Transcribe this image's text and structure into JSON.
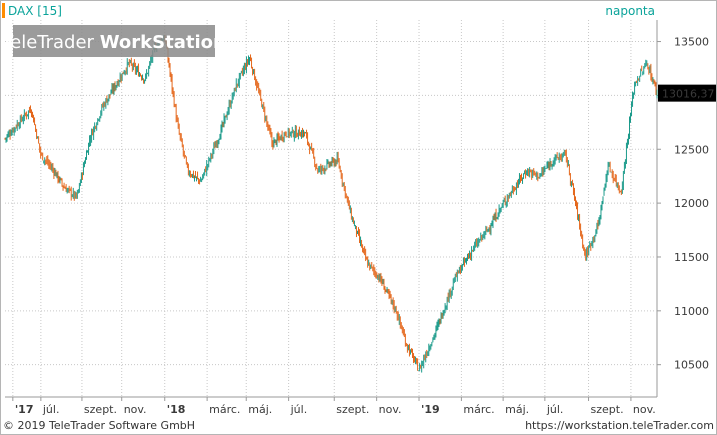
{
  "header": {
    "symbol_label": "DAX [15]",
    "period_label": "naponta"
  },
  "watermark": {
    "brand": "TeleTrader",
    "product": "WorkStation"
  },
  "last_price_label": "13016,37",
  "footer": {
    "copyright": "© 2019 TeleTrader Software GmbH",
    "url": "https://workstation.teleTrader.com"
  },
  "colors": {
    "up": "#1a9a8a",
    "down": "#e4661a",
    "accent": "#ff8c00",
    "title": "#0aa39a",
    "grid": "#c8c8c8",
    "price_box": "#000000",
    "watermark_bg": "#8a8a8a"
  },
  "chart_data": {
    "type": "line",
    "candle_style": "ohlc-bars",
    "series_name": "DAX",
    "ylim": [
      10200,
      13700
    ],
    "y_ticks": [
      10500,
      11000,
      11500,
      12000,
      12500,
      13000,
      13500
    ],
    "y_tick_labels": [
      "10500",
      "11000",
      "11500",
      "12000",
      "12500",
      "13000",
      "13500"
    ],
    "x_tick_labels": [
      "'17",
      "júl.",
      "szept.",
      "nov.",
      "'18",
      "márc.",
      "máj.",
      "júl.",
      "szept.",
      "nov.",
      "'19",
      "márc.",
      "máj.",
      "júl.",
      "szept.",
      "nov."
    ],
    "x_tick_bold": [
      true,
      false,
      false,
      false,
      true,
      false,
      false,
      false,
      false,
      false,
      true,
      false,
      false,
      false,
      false,
      false
    ],
    "x_tick_pos": [
      0.012,
      0.055,
      0.118,
      0.179,
      0.245,
      0.31,
      0.37,
      0.435,
      0.505,
      0.57,
      0.635,
      0.7,
      0.764,
      0.828,
      0.895,
      0.96
    ],
    "x": [
      0.0,
      0.04,
      0.055,
      0.075,
      0.09,
      0.11,
      0.13,
      0.15,
      0.165,
      0.19,
      0.215,
      0.23,
      0.245,
      0.265,
      0.28,
      0.3,
      0.33,
      0.355,
      0.375,
      0.41,
      0.43,
      0.46,
      0.48,
      0.51,
      0.53,
      0.555,
      0.575,
      0.6,
      0.615,
      0.635,
      0.66,
      0.69,
      0.715,
      0.74,
      0.77,
      0.8,
      0.82,
      0.84,
      0.86,
      0.875,
      0.89,
      0.91,
      0.925,
      0.945,
      0.965,
      0.985,
      1.0
    ],
    "values": [
      12600,
      12880,
      12450,
      12300,
      12150,
      12050,
      12600,
      12900,
      13050,
      13300,
      13150,
      13450,
      13550,
      12700,
      12300,
      12200,
      12650,
      13100,
      13350,
      12550,
      12650,
      12650,
      12300,
      12400,
      11900,
      11450,
      11300,
      11000,
      10700,
      10450,
      10800,
      11300,
      11550,
      11750,
      12050,
      12300,
      12250,
      12400,
      12450,
      12000,
      11500,
      11800,
      12350,
      12100,
      13100,
      13300,
      13016.37
    ],
    "last_value": 13016.37
  }
}
